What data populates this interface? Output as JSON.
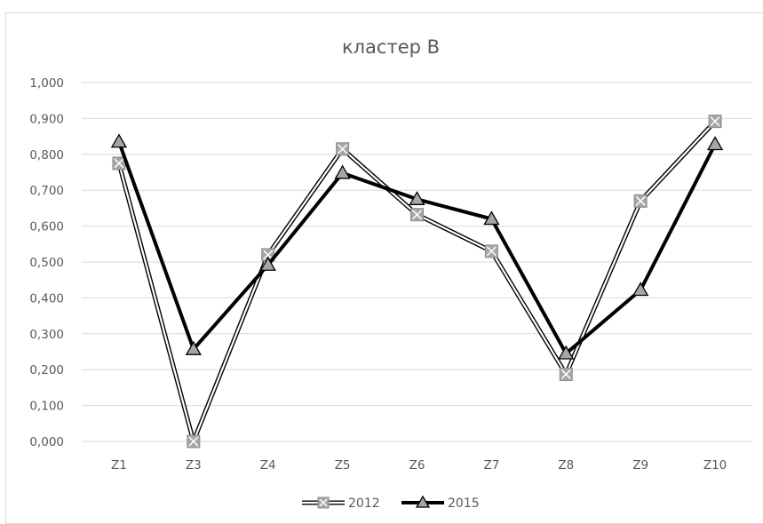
{
  "chart_data": {
    "type": "line",
    "title": "кластер В",
    "categories": [
      "Z1",
      "Z3",
      "Z4",
      "Z5",
      "Z6",
      "Z7",
      "Z8",
      "Z9",
      "Z10"
    ],
    "ylim": [
      0,
      1
    ],
    "yticks": [
      "0,000",
      "0,100",
      "0,200",
      "0,300",
      "0,400",
      "0,500",
      "0,600",
      "0,700",
      "0,800",
      "0,900",
      "1,000"
    ],
    "grid": true,
    "legend_position": "bottom",
    "series": [
      {
        "name": "2012",
        "marker": "square-x",
        "values": [
          0.775,
          0.0,
          0.52,
          0.815,
          0.632,
          0.53,
          0.187,
          0.67,
          0.892
        ],
        "color": "#000000",
        "marker_color": "#a6a6a6"
      },
      {
        "name": "2015",
        "marker": "triangle",
        "values": [
          0.835,
          0.257,
          0.492,
          0.748,
          0.675,
          0.62,
          0.245,
          0.422,
          0.828
        ],
        "color": "#000000",
        "marker_color": "#a6a6a6"
      }
    ]
  }
}
